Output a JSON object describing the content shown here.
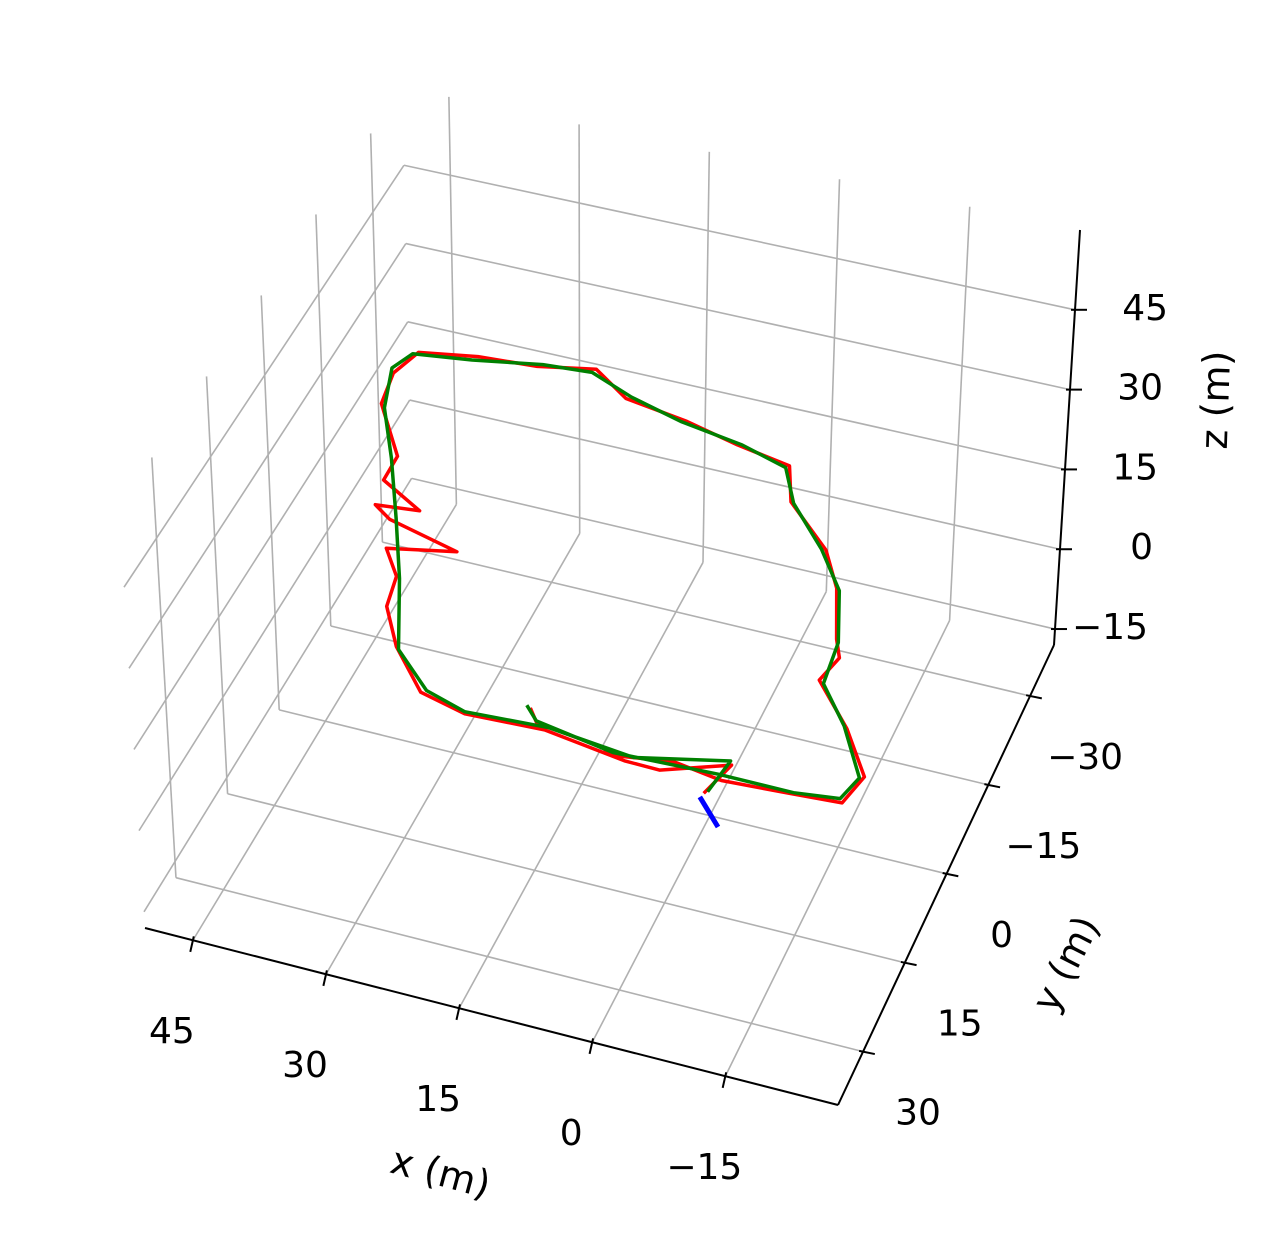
{
  "chart_data": {
    "type": "line3d",
    "xlabel": "x (m)",
    "ylabel": "y (m)",
    "zlabel": "z (m)",
    "xlim": [
      -27.7,
      50.4
    ],
    "ylim": [
      -38.6,
      39
    ],
    "zlim": [
      -18,
      60
    ],
    "xticks": [
      {
        "value": -15,
        "label": "−15"
      },
      0,
      15,
      30,
      45
    ],
    "yticks": [
      {
        "value": -30,
        "label": "−30"
      },
      {
        "value": -15,
        "label": "−15"
      },
      0,
      15,
      30
    ],
    "zticks": [
      {
        "value": -15,
        "label": "−15"
      },
      0,
      15,
      30,
      45
    ],
    "grid": true,
    "series": [
      {
        "color": "#ff0000",
        "x": [
          13.0,
          11.5,
          4,
          2.2,
          -4,
          -9.5,
          -17,
          -22.6,
          -23.5,
          -19.5,
          -14.2,
          -15,
          -13.9,
          -11.2,
          -8.2,
          -1.8,
          0.3,
          6.8,
          13.6,
          21.2,
          26.0,
          32.4,
          39.0,
          45.5,
          46.8,
          45.9,
          41.0,
          40.8,
          35.4,
          40.3,
          37.8,
          29.2,
          36.4,
          33.8,
          32.8,
          29.6,
          24.6,
          19.0,
          10.4,
          1.0,
          -3,
          -9.8,
          -8.5
        ],
        "y": [
          21.9,
          24.2,
          25.2,
          26.4,
          25,
          25.9,
          26.0,
          25.2,
          20.2,
          13.8,
          7.0,
          2.5,
          0.2,
          -7.9,
          -13.1,
          -19.9,
          -25.3,
          -26.5,
          -28.9,
          -30.1,
          -33.5,
          -32.1,
          -31.2,
          -30.0,
          -26.0,
          -20.4,
          -12.8,
          -8.3,
          -5.0,
          -4.6,
          -2.4,
          0.1,
          2.2,
          6.0,
          11.5,
          17.2,
          23.4,
          25.4,
          24.8,
          26.5,
          26.9,
          23.4,
          28.8
        ],
        "z": [
          20,
          20.3,
          19.8,
          20.2,
          20,
          19.7,
          20.4,
          20,
          19.8,
          20.3,
          20,
          19.6,
          20.2,
          20,
          20.4,
          19.8,
          20,
          20.3,
          19.7,
          20,
          20.2,
          19.9,
          20.3,
          20,
          19.8,
          20.2,
          20,
          20.3,
          20,
          19.7,
          20.2,
          20,
          20.1,
          19.8,
          20.3,
          20,
          19.9,
          20.2,
          20,
          19.8,
          20.1,
          20,
          20
        ]
      },
      {
        "color": "#008000",
        "x": [
          13.5,
          11.7,
          2.5,
          -9.0,
          -17.3,
          -22.2,
          -23.1,
          -19.0,
          -14.8,
          -14.2,
          -11.6,
          -7.6,
          -2.2,
          0.6,
          6.4,
          14.0,
          20.7,
          26.3,
          31.9,
          39.5,
          46.0,
          47.2,
          45.4,
          41.5,
          37.3,
          33.3,
          29.2,
          24.1,
          19.2,
          10.1,
          0.2,
          -9.5,
          -8.8
        ],
        "y": [
          21.6,
          23.7,
          25.8,
          25.3,
          25.4,
          24.6,
          20.7,
          13.2,
          7.4,
          0.5,
          -7.6,
          -13.4,
          -19.6,
          -24.9,
          -26.9,
          -28.4,
          -30.5,
          -33.0,
          -32.5,
          -30.7,
          -29.6,
          -26.6,
          -20.0,
          -12.3,
          -3.0,
          6.4,
          17.6,
          23.0,
          24.9,
          24.3,
          25.8,
          22.8,
          28.4
        ],
        "z": [
          20,
          20,
          20,
          20,
          20,
          20,
          20,
          20,
          20,
          20,
          20,
          20,
          20,
          20,
          20,
          20,
          20,
          20,
          20,
          20,
          20,
          20,
          20,
          20,
          20,
          20,
          20,
          20,
          20,
          20,
          20,
          20,
          20
        ]
      },
      {
        "color": "#0000ff",
        "width": 5,
        "x": [
          -8.3,
          -11.6
        ],
        "y": [
          29.5,
          33.5
        ],
        "z": [
          20,
          20
        ]
      }
    ]
  }
}
